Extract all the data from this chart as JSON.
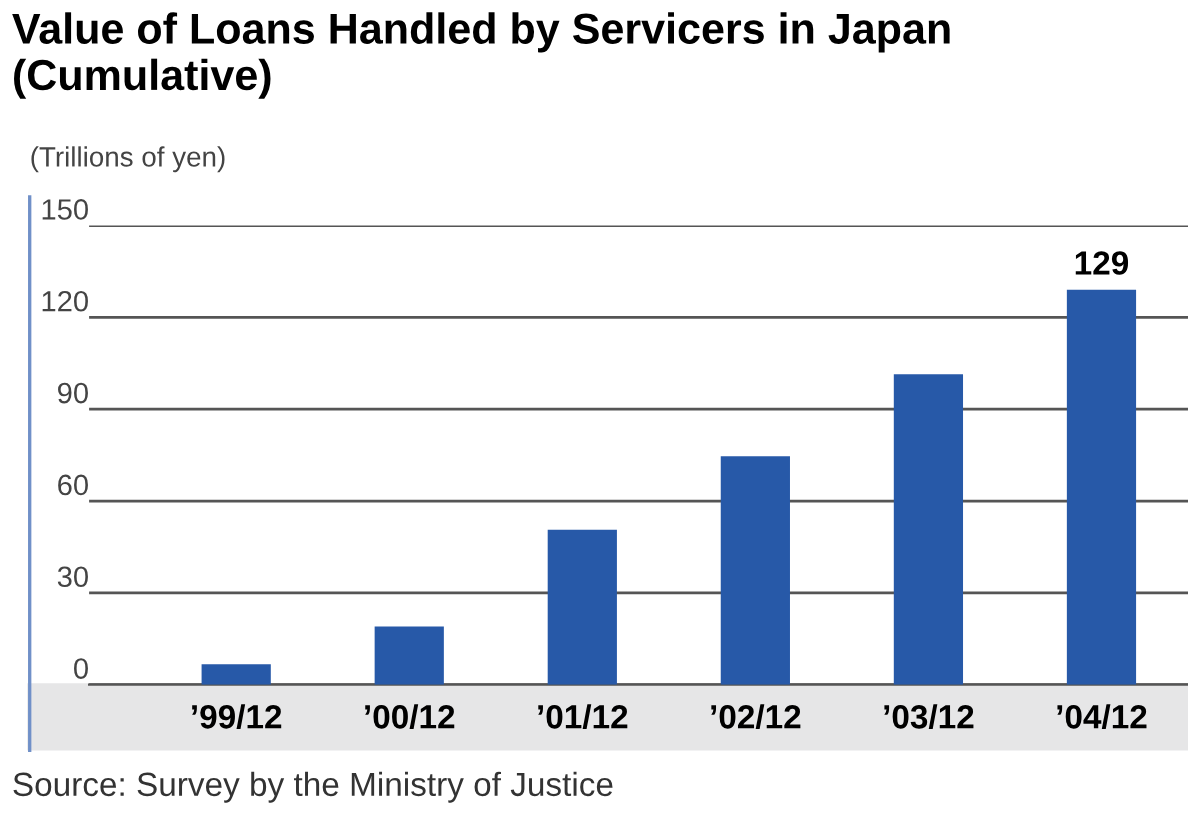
{
  "chart_data": {
    "type": "bar",
    "title": "Value of Loans Handled by Servicers in Japan\n(Cumulative)",
    "ylabel": "(Trillions of yen)",
    "categories": [
      "’99/12",
      "’00/12",
      "’01/12",
      "’02/12",
      "’03/12",
      "’04/12"
    ],
    "values": [
      6.7,
      19,
      50.6,
      74.6,
      101.4,
      129
    ],
    "value_labels": [
      null,
      null,
      null,
      null,
      null,
      "129"
    ],
    "color": "#2759a8",
    "ylim": [
      0,
      150
    ],
    "yticks": [
      0,
      30,
      60,
      90,
      120,
      150
    ],
    "grid": "y",
    "annotations": [
      "Source: Survey by the Ministry of Justice"
    ]
  }
}
